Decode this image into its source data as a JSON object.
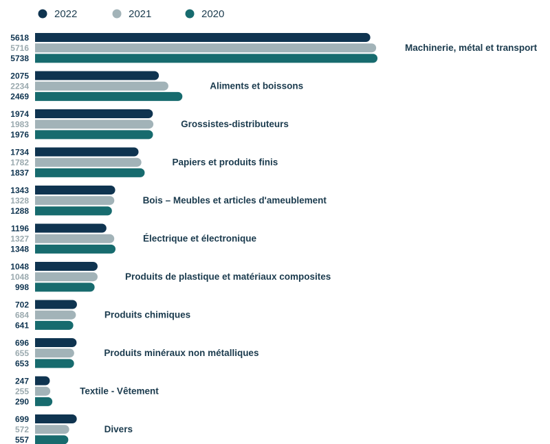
{
  "chart_data": {
    "type": "bar",
    "orientation": "horizontal",
    "legend_position": "top-left",
    "categories": [
      "Machinerie, métal et transport",
      "Aliments et boissons",
      "Grossistes-distributeurs",
      "Papiers et produits finis",
      "Bois – Meubles et articles d'ameublement",
      "Électrique et électronique",
      "Produits de plastique et matériaux composites",
      "Produits chimiques",
      "Produits minéraux non métalliques",
      "Textile - Vêtement",
      "Divers"
    ],
    "series": [
      {
        "name": "2022",
        "color": "#0f3450",
        "label_color": "#0f3450",
        "values": [
          5618,
          2075,
          1974,
          1734,
          1343,
          1196,
          1048,
          702,
          696,
          247,
          699
        ]
      },
      {
        "name": "2021",
        "color": "#a2b3b8",
        "label_color": "#9aa9ae",
        "values": [
          5716,
          2234,
          1983,
          1782,
          1328,
          1327,
          1048,
          684,
          655,
          255,
          572
        ]
      },
      {
        "name": "2020",
        "color": "#176b6e",
        "label_color": "#0f3450",
        "values": [
          5738,
          2469,
          1976,
          1837,
          1288,
          1348,
          998,
          641,
          653,
          290,
          557
        ]
      }
    ],
    "grid": false
  }
}
